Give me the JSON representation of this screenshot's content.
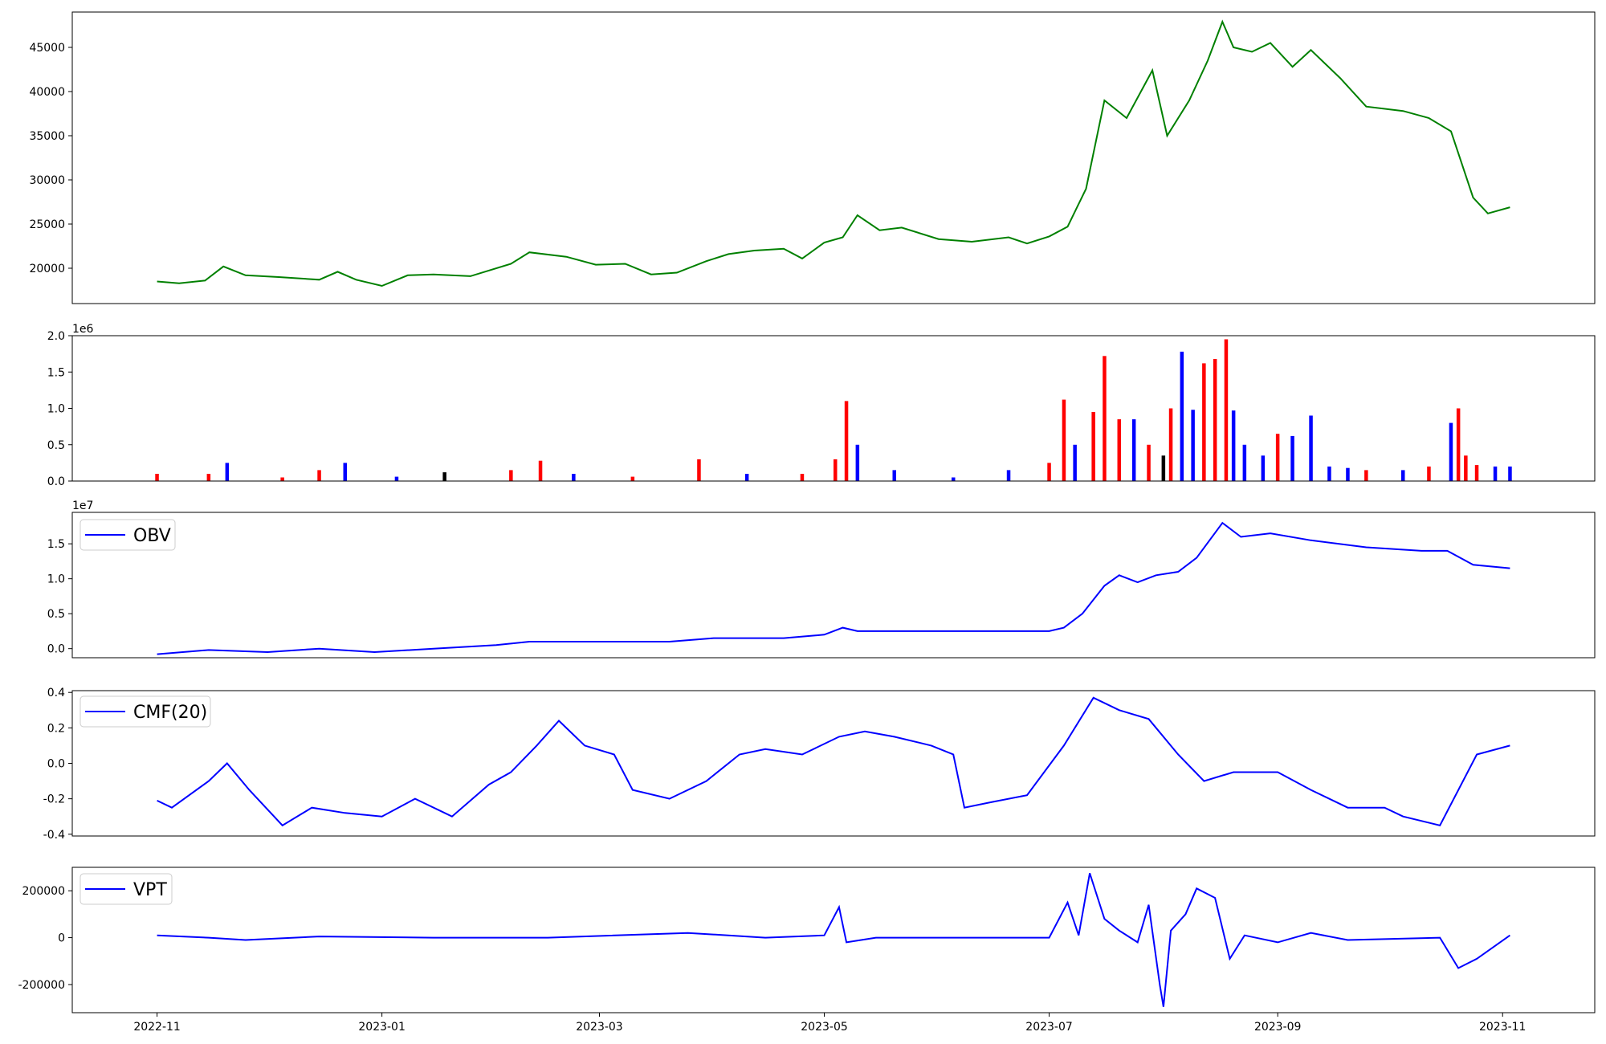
{
  "chart_data": [
    {
      "type": "line",
      "x": [
        "2022-11-01",
        "2022-11-07",
        "2022-11-14",
        "2022-11-19",
        "2022-11-25",
        "2022-12-04",
        "2022-12-15",
        "2022-12-20",
        "2022-12-25",
        "2023-01-01",
        "2023-01-08",
        "2023-01-15",
        "2023-01-25",
        "2023-02-05",
        "2023-02-10",
        "2023-02-20",
        "2023-02-28",
        "2023-03-08",
        "2023-03-15",
        "2023-03-22",
        "2023-03-30",
        "2023-04-05",
        "2023-04-12",
        "2023-04-20",
        "2023-04-25",
        "2023-05-01",
        "2023-05-06",
        "2023-05-10",
        "2023-05-16",
        "2023-05-22",
        "2023-06-01",
        "2023-06-10",
        "2023-06-20",
        "2023-06-25",
        "2023-07-01",
        "2023-07-06",
        "2023-07-11",
        "2023-07-16",
        "2023-07-22",
        "2023-07-29",
        "2023-08-02",
        "2023-08-08",
        "2023-08-13",
        "2023-08-17",
        "2023-08-20",
        "2023-08-25",
        "2023-08-30",
        "2023-09-05",
        "2023-09-10",
        "2023-09-18",
        "2023-09-25",
        "2023-10-05",
        "2023-10-12",
        "2023-10-18",
        "2023-10-24",
        "2023-10-28",
        "2023-11-03"
      ],
      "series": [
        {
          "values": [
            18500,
            18300,
            18600,
            20200,
            19200,
            19000,
            18700,
            19600,
            18700,
            18000,
            19200,
            19300,
            19100,
            20500,
            21800,
            21300,
            20400,
            20500,
            19300,
            19500,
            20800,
            21600,
            22000,
            22200,
            21100,
            22900,
            23500,
            26000,
            24300,
            24600,
            23300,
            23000,
            23500,
            22800,
            23600,
            24700,
            29000,
            39000,
            37000,
            42400,
            35000,
            39000,
            43500,
            47900,
            45000,
            44500,
            45500,
            42800,
            44700,
            41500,
            38300,
            37800,
            37000,
            35500,
            28000,
            26200,
            26900
          ]
        }
      ],
      "ylim": [
        16000,
        49000
      ],
      "yticks": [
        20000,
        25000,
        30000,
        35000,
        40000,
        45000
      ],
      "line_color": "#008000"
    },
    {
      "type": "bar",
      "offset_text": "1e6",
      "x": [
        "2022-11-01",
        "2022-11-15",
        "2022-11-20",
        "2022-12-05",
        "2022-12-15",
        "2022-12-22",
        "2023-01-05",
        "2023-01-18",
        "2023-02-05",
        "2023-02-13",
        "2023-02-22",
        "2023-03-10",
        "2023-03-28",
        "2023-04-10",
        "2023-04-25",
        "2023-05-04",
        "2023-05-07",
        "2023-05-10",
        "2023-05-20",
        "2023-06-05",
        "2023-06-20",
        "2023-07-01",
        "2023-07-05",
        "2023-07-08",
        "2023-07-13",
        "2023-07-16",
        "2023-07-20",
        "2023-07-24",
        "2023-07-28",
        "2023-08-01",
        "2023-08-03",
        "2023-08-06",
        "2023-08-09",
        "2023-08-12",
        "2023-08-15",
        "2023-08-18",
        "2023-08-20",
        "2023-08-23",
        "2023-08-28",
        "2023-09-01",
        "2023-09-05",
        "2023-09-10",
        "2023-09-15",
        "2023-09-20",
        "2023-09-25",
        "2023-10-05",
        "2023-10-12",
        "2023-10-18",
        "2023-10-20",
        "2023-10-22",
        "2023-10-25",
        "2023-10-30",
        "2023-11-03"
      ],
      "values": [
        0.1,
        0.1,
        0.25,
        0.05,
        0.15,
        0.25,
        0.06,
        0.12,
        0.15,
        0.28,
        0.1,
        0.06,
        0.3,
        0.1,
        0.1,
        0.3,
        1.1,
        0.5,
        0.15,
        0.05,
        0.15,
        0.25,
        1.12,
        0.5,
        0.95,
        1.72,
        0.85,
        0.85,
        0.5,
        0.35,
        1.0,
        1.78,
        0.98,
        1.62,
        1.68,
        1.95,
        0.97,
        0.5,
        0.35,
        0.65,
        0.62,
        0.9,
        0.2,
        0.18,
        0.15,
        0.15,
        0.2,
        0.8,
        1.0,
        0.35,
        0.22,
        0.2,
        0.2
      ],
      "colors": [
        "#ff0000",
        "#ff0000",
        "#0000ff",
        "#ff0000",
        "#ff0000",
        "#0000ff",
        "#0000ff",
        "#000000",
        "#ff0000",
        "#ff0000",
        "#0000ff",
        "#ff0000",
        "#ff0000",
        "#0000ff",
        "#ff0000",
        "#ff0000",
        "#ff0000",
        "#0000ff",
        "#0000ff",
        "#0000ff",
        "#0000ff",
        "#ff0000",
        "#ff0000",
        "#0000ff",
        "#ff0000",
        "#ff0000",
        "#ff0000",
        "#0000ff",
        "#ff0000",
        "#000000",
        "#ff0000",
        "#0000ff",
        "#0000ff",
        "#ff0000",
        "#ff0000",
        "#ff0000",
        "#0000ff",
        "#0000ff",
        "#0000ff",
        "#ff0000",
        "#0000ff",
        "#0000ff",
        "#0000ff",
        "#0000ff",
        "#ff0000",
        "#0000ff",
        "#ff0000",
        "#0000ff",
        "#ff0000",
        "#ff0000",
        "#ff0000",
        "#0000ff",
        "#0000ff"
      ],
      "ylim": [
        0,
        2.0
      ],
      "yticks": [
        "0.0",
        "0.5",
        "1.0",
        "1.5",
        "2.0"
      ]
    },
    {
      "type": "line",
      "offset_text": "1e7",
      "legend": {
        "entries": [
          "OBV"
        ],
        "position": "upper-left"
      },
      "x": [
        "2022-11-01",
        "2022-11-15",
        "2022-12-01",
        "2022-12-15",
        "2022-12-30",
        "2023-01-15",
        "2023-02-01",
        "2023-02-10",
        "2023-03-01",
        "2023-03-20",
        "2023-04-01",
        "2023-04-20",
        "2023-05-01",
        "2023-05-06",
        "2023-05-10",
        "2023-05-20",
        "2023-06-10",
        "2023-07-01",
        "2023-07-05",
        "2023-07-10",
        "2023-07-16",
        "2023-07-20",
        "2023-07-25",
        "2023-07-30",
        "2023-08-05",
        "2023-08-10",
        "2023-08-17",
        "2023-08-22",
        "2023-08-30",
        "2023-09-10",
        "2023-09-25",
        "2023-10-10",
        "2023-10-17",
        "2023-10-24",
        "2023-11-03"
      ],
      "series": [
        {
          "name": "OBV",
          "values": [
            -0.08,
            -0.02,
            -0.05,
            0.0,
            -0.05,
            0.0,
            0.05,
            0.1,
            0.1,
            0.1,
            0.15,
            0.15,
            0.2,
            0.3,
            0.25,
            0.25,
            0.25,
            0.25,
            0.3,
            0.5,
            0.9,
            1.05,
            0.95,
            1.05,
            1.1,
            1.3,
            1.8,
            1.6,
            1.65,
            1.55,
            1.45,
            1.4,
            1.4,
            1.2,
            1.15
          ]
        }
      ],
      "ylim": [
        -0.13,
        1.95
      ],
      "yticks": [
        "0.0",
        "0.5",
        "1.0",
        "1.5"
      ]
    },
    {
      "type": "line",
      "legend": {
        "entries": [
          "CMF(20)"
        ],
        "position": "upper-left"
      },
      "x": [
        "2022-11-01",
        "2022-11-05",
        "2022-11-15",
        "2022-11-20",
        "2022-11-26",
        "2022-12-05",
        "2022-12-13",
        "2022-12-22",
        "2023-01-01",
        "2023-01-10",
        "2023-01-20",
        "2023-01-30",
        "2023-02-05",
        "2023-02-12",
        "2023-02-18",
        "2023-02-25",
        "2023-03-05",
        "2023-03-10",
        "2023-03-20",
        "2023-03-30",
        "2023-04-08",
        "2023-04-15",
        "2023-04-25",
        "2023-05-05",
        "2023-05-12",
        "2023-05-20",
        "2023-05-30",
        "2023-06-05",
        "2023-06-08",
        "2023-06-15",
        "2023-06-25",
        "2023-07-05",
        "2023-07-13",
        "2023-07-20",
        "2023-07-28",
        "2023-08-05",
        "2023-08-12",
        "2023-08-20",
        "2023-09-01",
        "2023-09-10",
        "2023-09-20",
        "2023-09-30",
        "2023-10-05",
        "2023-10-15",
        "2023-10-25",
        "2023-11-03"
      ],
      "series": [
        {
          "name": "CMF(20)",
          "values": [
            -0.21,
            -0.25,
            -0.1,
            0.0,
            -0.15,
            -0.35,
            -0.25,
            -0.28,
            -0.3,
            -0.2,
            -0.3,
            -0.12,
            -0.05,
            0.1,
            0.24,
            0.1,
            0.05,
            -0.15,
            -0.2,
            -0.1,
            0.05,
            0.08,
            0.05,
            0.15,
            0.18,
            0.15,
            0.1,
            0.05,
            -0.25,
            -0.22,
            -0.18,
            0.1,
            0.37,
            0.3,
            0.25,
            0.05,
            -0.1,
            -0.05,
            -0.05,
            -0.15,
            -0.25,
            -0.25,
            -0.3,
            -0.35,
            0.05,
            0.1
          ]
        }
      ],
      "ylim": [
        -0.41,
        0.41
      ],
      "yticks": [
        "-0.4",
        "-0.2",
        "0.0",
        "0.2",
        "0.4"
      ]
    },
    {
      "type": "line",
      "legend": {
        "entries": [
          "VPT"
        ],
        "position": "upper-left"
      },
      "x": [
        "2022-11-01",
        "2022-11-15",
        "2022-11-25",
        "2022-12-15",
        "2023-01-15",
        "2023-02-15",
        "2023-03-25",
        "2023-04-15",
        "2023-05-01",
        "2023-05-05",
        "2023-05-07",
        "2023-05-15",
        "2023-06-15",
        "2023-07-01",
        "2023-07-06",
        "2023-07-09",
        "2023-07-12",
        "2023-07-16",
        "2023-07-20",
        "2023-07-25",
        "2023-07-28",
        "2023-07-31",
        "2023-08-01",
        "2023-08-03",
        "2023-08-07",
        "2023-08-10",
        "2023-08-15",
        "2023-08-19",
        "2023-08-23",
        "2023-09-01",
        "2023-09-10",
        "2023-09-20",
        "2023-10-15",
        "2023-10-20",
        "2023-10-25",
        "2023-11-03"
      ],
      "series": [
        {
          "name": "VPT",
          "values": [
            10000,
            0,
            -10000,
            5000,
            0,
            0,
            20000,
            0,
            10000,
            130000,
            -20000,
            0,
            0,
            0,
            150000,
            10000,
            275000,
            80000,
            30000,
            -20000,
            140000,
            -200000,
            -295000,
            30000,
            100000,
            210000,
            170000,
            -90000,
            10000,
            -20000,
            20000,
            -10000,
            0,
            -130000,
            -90000,
            10000
          ]
        }
      ],
      "ylim": [
        -320000,
        300000
      ],
      "yticks": [
        "-200000",
        "0",
        "200000"
      ]
    }
  ],
  "x_axis": {
    "tick_dates": [
      "2022-11-01",
      "2023-01-01",
      "2023-03-01",
      "2023-05-01",
      "2023-07-01",
      "2023-09-01",
      "2023-11-01"
    ],
    "tick_labels": [
      "2022-11",
      "2023-01",
      "2023-03",
      "2023-05",
      "2023-07",
      "2023-09",
      "2023-11"
    ],
    "xlim": [
      "2022-10-09",
      "2023-11-26"
    ]
  }
}
